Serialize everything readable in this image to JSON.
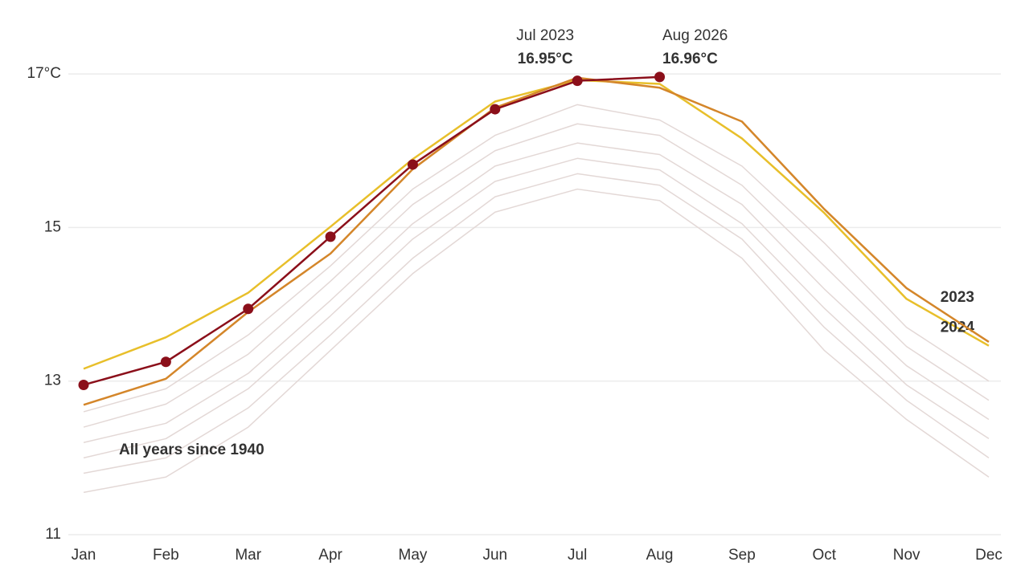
{
  "chart_data": {
    "type": "line",
    "categories": [
      "Jan",
      "Feb",
      "Mar",
      "Apr",
      "May",
      "Jun",
      "Jul",
      "Aug",
      "Sep",
      "Oct",
      "Nov",
      "Dec"
    ],
    "ylim": [
      11,
      17.5
    ],
    "yticks": [
      11,
      13,
      15,
      {
        "value": 17,
        "label": "17°C"
      }
    ],
    "grid": true,
    "annotations": [
      "Jul 2023",
      "Aug 2026"
    ],
    "background_series": [
      {
        "name": "All years since 1940",
        "color": "#e3d8d6",
        "values": [
          11.55,
          11.75,
          12.4,
          13.4,
          14.4,
          15.2,
          15.5,
          15.35,
          14.6,
          13.4,
          12.5,
          11.75
        ]
      },
      {
        "color": "#e3d8d6",
        "values": [
          11.8,
          12.0,
          12.65,
          13.6,
          14.6,
          15.4,
          15.7,
          15.55,
          14.85,
          13.7,
          12.75,
          12.0
        ]
      },
      {
        "color": "#e3d8d6",
        "values": [
          12.0,
          12.25,
          12.9,
          13.85,
          14.85,
          15.6,
          15.9,
          15.75,
          15.05,
          13.95,
          12.95,
          12.25
        ]
      },
      {
        "color": "#e3d8d6",
        "values": [
          12.2,
          12.45,
          13.1,
          14.05,
          15.05,
          15.8,
          16.1,
          15.95,
          15.3,
          14.2,
          13.2,
          12.5
        ]
      },
      {
        "color": "#e3d8d6",
        "values": [
          12.4,
          12.7,
          13.35,
          14.3,
          15.3,
          16.0,
          16.35,
          16.2,
          15.55,
          14.5,
          13.45,
          12.75
        ]
      },
      {
        "color": "#e3d8d6",
        "values": [
          12.6,
          12.9,
          13.6,
          14.5,
          15.5,
          16.2,
          16.6,
          16.4,
          15.8,
          14.8,
          13.7,
          13.0
        ]
      }
    ],
    "series": [
      {
        "name": "2024",
        "color": "#e8bf2a",
        "values": [
          13.16,
          13.57,
          14.15,
          15.01,
          15.89,
          16.64,
          16.92,
          16.87,
          16.16,
          15.19,
          14.07,
          13.46
        ]
      },
      {
        "name": "2023",
        "color": "#d4862a",
        "values": [
          12.69,
          13.03,
          13.9,
          14.66,
          15.76,
          16.56,
          16.95,
          16.82,
          16.38,
          15.24,
          14.21,
          13.51
        ],
        "value_labels": [
          null,
          null,
          null,
          null,
          null,
          null,
          "16.95°C",
          null,
          null,
          null,
          null,
          null
        ]
      },
      {
        "color": "#8b0f1a",
        "markers": true,
        "values": [
          12.95,
          13.25,
          13.94,
          14.88,
          15.82,
          16.54,
          16.91,
          16.96,
          null,
          null,
          null,
          null
        ],
        "value_labels": [
          null,
          null,
          null,
          null,
          null,
          null,
          null,
          "16.96°C",
          null,
          null,
          null,
          null
        ]
      }
    ]
  }
}
